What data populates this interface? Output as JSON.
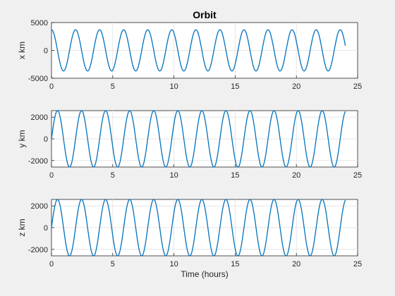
{
  "chart_data": [
    {
      "type": "line",
      "title": "Orbit",
      "xlabel": "",
      "ylabel": "x km",
      "xlim": [
        0,
        25
      ],
      "ylim": [
        -5000,
        5000
      ],
      "xticks": [
        0,
        5,
        10,
        15,
        20,
        25
      ],
      "yticks": [
        -5000,
        0,
        5000
      ],
      "grid": true,
      "series": [
        {
          "color": "#0072bd",
          "amplitude": 3700,
          "period_hours": 1.965,
          "phase": "cos",
          "x_start": 0,
          "x_end": 24
        }
      ]
    },
    {
      "type": "line",
      "title": "",
      "xlabel": "",
      "ylabel": "y km",
      "xlim": [
        0,
        25
      ],
      "ylim": [
        -2600,
        2600
      ],
      "xticks": [
        0,
        5,
        10,
        15,
        20,
        25
      ],
      "yticks": [
        -2000,
        0,
        2000
      ],
      "grid": true,
      "series": [
        {
          "color": "#0072bd",
          "amplitude": 2600,
          "period_hours": 1.965,
          "phase": "sin",
          "x_start": 0,
          "x_end": 24
        }
      ]
    },
    {
      "type": "line",
      "title": "",
      "xlabel": "Time (hours)",
      "ylabel": "z km",
      "xlim": [
        0,
        25
      ],
      "ylim": [
        -2600,
        2600
      ],
      "xticks": [
        0,
        5,
        10,
        15,
        20,
        25
      ],
      "yticks": [
        -2000,
        0,
        2000
      ],
      "grid": true,
      "series": [
        {
          "color": "#0072bd",
          "amplitude": 2600,
          "period_hours": 1.965,
          "phase": "sin",
          "x_start": 0,
          "x_end": 24
        }
      ]
    }
  ]
}
